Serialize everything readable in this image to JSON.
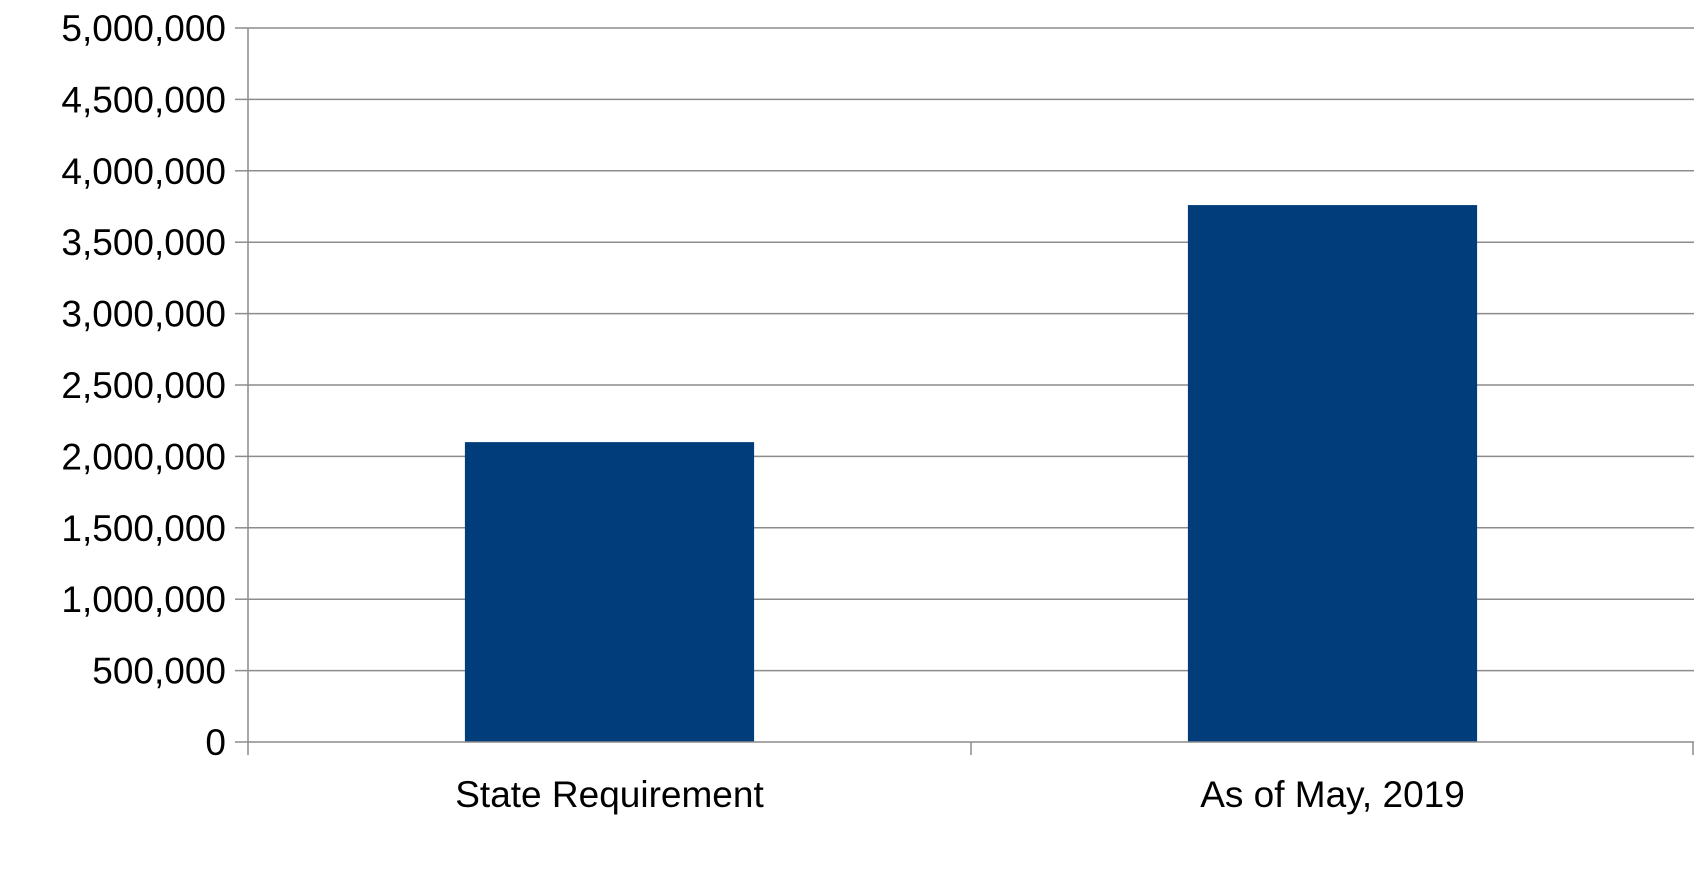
{
  "chart_data": {
    "type": "bar",
    "title": "",
    "xlabel": "",
    "ylabel": "",
    "categories": [
      "State Requirement",
      "As of May, 2019"
    ],
    "values": [
      2100000,
      3760000
    ],
    "ylim": [
      0,
      5000000
    ],
    "yticks": [
      0,
      500000,
      1000000,
      1500000,
      2000000,
      2500000,
      3000000,
      3500000,
      4000000,
      4500000,
      5000000
    ],
    "ytick_labels": [
      "0",
      "500,000",
      "1,000,000",
      "1,500,000",
      "2,000,000",
      "2,500,000",
      "3,000,000",
      "3,500,000",
      "4,000,000",
      "4,500,000",
      "5,000,000"
    ],
    "grid": true,
    "legend": "none",
    "colors": {
      "bar": "#003d7a",
      "grid": "#8c8c8c",
      "axis": "#8c8c8c"
    }
  }
}
